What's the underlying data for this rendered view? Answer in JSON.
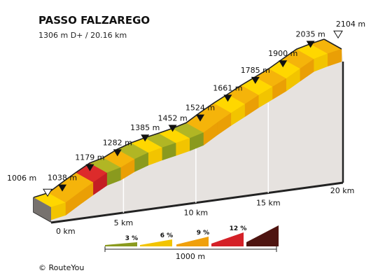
{
  "chart_data": {
    "type": "area",
    "title": "PASSO FALZAREGO",
    "subtitle": "1306 m D+ / 20.16 km",
    "x_unit": "km",
    "x_ticks": [
      {
        "value": 0,
        "label": "0 km"
      },
      {
        "value": 5,
        "label": "5 km"
      },
      {
        "value": 10,
        "label": "10 km"
      },
      {
        "value": 15,
        "label": "15 km"
      },
      {
        "value": 20,
        "label": "20 km"
      }
    ],
    "elevation_markers": [
      {
        "km": 0.0,
        "label": "1006 m",
        "type": "start"
      },
      {
        "km": 0.8,
        "label": "1038 m",
        "type": "point"
      },
      {
        "km": 2.3,
        "label": "1179 m",
        "type": "point"
      },
      {
        "km": 3.8,
        "label": "1282 m",
        "type": "point"
      },
      {
        "km": 5.3,
        "label": "1385 m",
        "type": "point"
      },
      {
        "km": 6.8,
        "label": "1452 m",
        "type": "point"
      },
      {
        "km": 8.3,
        "label": "1524 m",
        "type": "point"
      },
      {
        "km": 9.8,
        "label": "1661 m",
        "type": "point"
      },
      {
        "km": 11.3,
        "label": "1785 m",
        "type": "point"
      },
      {
        "km": 12.8,
        "label": "1900 m",
        "type": "point"
      },
      {
        "km": 14.3,
        "label": "2035 m",
        "type": "point"
      },
      {
        "km": 15.8,
        "label": "2104 m",
        "type": "end"
      }
    ],
    "profile": [
      {
        "km": 0.0,
        "elev": 1006
      },
      {
        "km": 0.8,
        "elev": 1038
      },
      {
        "km": 1.55,
        "elev": 1110
      },
      {
        "km": 2.3,
        "elev": 1179
      },
      {
        "km": 3.05,
        "elev": 1245
      },
      {
        "km": 3.8,
        "elev": 1282
      },
      {
        "km": 4.55,
        "elev": 1340
      },
      {
        "km": 5.3,
        "elev": 1385
      },
      {
        "km": 6.05,
        "elev": 1420
      },
      {
        "km": 6.8,
        "elev": 1452
      },
      {
        "km": 7.55,
        "elev": 1485
      },
      {
        "km": 8.3,
        "elev": 1524
      },
      {
        "km": 9.05,
        "elev": 1595
      },
      {
        "km": 9.8,
        "elev": 1661
      },
      {
        "km": 10.55,
        "elev": 1722
      },
      {
        "km": 11.3,
        "elev": 1785
      },
      {
        "km": 12.05,
        "elev": 1842
      },
      {
        "km": 12.8,
        "elev": 1900
      },
      {
        "km": 13.55,
        "elev": 1968
      },
      {
        "km": 14.3,
        "elev": 2035
      },
      {
        "km": 15.05,
        "elev": 2072
      },
      {
        "km": 15.8,
        "elev": 2104
      }
    ],
    "segment_colors": [
      "yellow",
      "orange",
      "orange",
      "red",
      "olive",
      "orange",
      "olive",
      "yellow",
      "olive",
      "yellow",
      "olive",
      "orange",
      "orange",
      "yellow",
      "orange",
      "yellow",
      "orange",
      "yellow",
      "orange",
      "yellow",
      "orange"
    ],
    "legend": [
      {
        "label": "3 %",
        "color": "#8a9a1e"
      },
      {
        "label": "6 %",
        "color": "#f2c400"
      },
      {
        "label": "9 %",
        "color": "#f0a00c"
      },
      {
        "label": "12 %",
        "color": "#d42128"
      },
      {
        "label": "",
        "color": "#4e1410"
      }
    ],
    "scale_label": "1000 m",
    "credit": "©  RouteYou"
  },
  "colors": {
    "yellow_top": "#ffd700",
    "yellow_side": "#f2c400",
    "orange_top": "#f5b40a",
    "orange_side": "#ea9f05",
    "olive_top": "#b1b624",
    "olive_side": "#8a9a1e",
    "red_top": "#dd2b2b",
    "red_side": "#c41e24",
    "wall": "#e6e2df",
    "edge": "#222222"
  }
}
